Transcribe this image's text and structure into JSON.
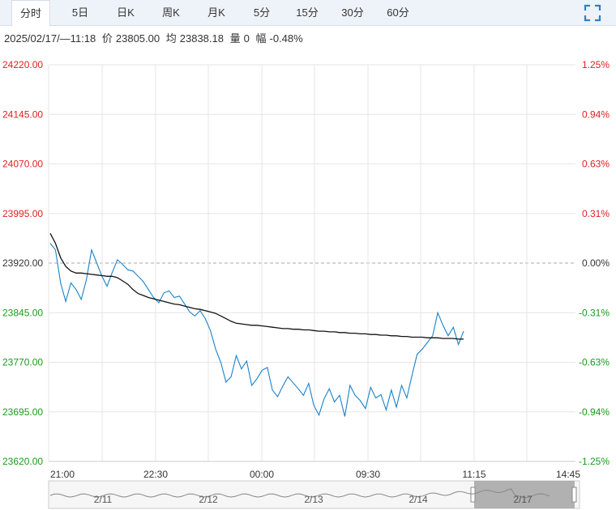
{
  "tabs": [
    {
      "label": "分时",
      "active": true
    },
    {
      "label": "5日"
    },
    {
      "label": "日K"
    },
    {
      "label": "周K"
    },
    {
      "label": "月K"
    },
    {
      "label": "5分"
    },
    {
      "label": "15分"
    },
    {
      "label": "30分"
    },
    {
      "label": "60分"
    }
  ],
  "fullscreen_icon": "expand-icon",
  "info": {
    "datetime": "2025/02/17/—11:18",
    "price_label": "价",
    "price": "23805.00",
    "avg_label": "均",
    "avg": "23838.18",
    "vol_label": "量",
    "vol": "0",
    "change_label": "幅",
    "change": "-0.48%"
  },
  "colors": {
    "up": "#e02020",
    "down": "#1a9a1a",
    "price_line": "#1a82c8",
    "avg_line": "#111111",
    "grid": "#e6e6e6",
    "ref_line": "#aaaaaa"
  },
  "chart_data": {
    "type": "line",
    "y_ticks": [
      "24220.00",
      "24145.00",
      "24070.00",
      "23995.00",
      "23920.00",
      "23845.00",
      "23770.00",
      "23695.00",
      "23620.00"
    ],
    "pct_ticks": [
      "1.25%",
      "0.94%",
      "0.63%",
      "0.31%",
      "0.00%",
      "-0.31%",
      "-0.63%",
      "-0.94%",
      "-1.25%"
    ],
    "x_ticks": [
      "21:00",
      "22:30",
      "00:00",
      "09:30",
      "11:15",
      "14:45"
    ],
    "ylim": [
      23620,
      24220
    ],
    "reference_price": 23920,
    "series": [
      {
        "values": [
          23950,
          23940,
          23890,
          23862,
          23890,
          23880,
          23865,
          23895,
          23940,
          23920,
          23900,
          23885,
          23906,
          23925,
          23918,
          23910,
          23908,
          23900,
          23892,
          23880,
          23868,
          23860,
          23875,
          23878,
          23868,
          23870,
          23858,
          23846,
          23840,
          23848,
          23836,
          23818,
          23790,
          23770,
          23740,
          23748,
          23780,
          23760,
          23772,
          23735,
          23745,
          23758,
          23762,
          23728,
          23718,
          23734,
          23748,
          23739,
          23730,
          23720,
          23738,
          23705,
          23690,
          23715,
          23730,
          23710,
          23720,
          23688,
          23735,
          23720,
          23712,
          23700,
          23732,
          23716,
          23721,
          23698,
          23728,
          23702,
          23735,
          23716,
          23750,
          23782,
          23790,
          23800,
          23810,
          23845,
          23826,
          23810,
          23823,
          23797,
          23817
        ]
      },
      {
        "values": [
          23965,
          23950,
          23928,
          23915,
          23908,
          23905,
          23905,
          23904,
          23903,
          23902,
          23901,
          23900,
          23900,
          23898,
          23893,
          23888,
          23880,
          23874,
          23871,
          23868,
          23866,
          23864,
          23862,
          23860,
          23858,
          23857,
          23855,
          23853,
          23851,
          23850,
          23848,
          23846,
          23844,
          23840,
          23836,
          23832,
          23829,
          23828,
          23827,
          23826,
          23826,
          23825,
          23824,
          23823,
          23822,
          23821,
          23821,
          23820,
          23820,
          23819,
          23819,
          23818,
          23817,
          23817,
          23816,
          23816,
          23815,
          23815,
          23814,
          23814,
          23813,
          23813,
          23812,
          23812,
          23811,
          23811,
          23810,
          23810,
          23809,
          23809,
          23808,
          23808,
          23808,
          23807,
          23807,
          23807,
          23806,
          23806,
          23806,
          23805,
          23805
        ]
      }
    ],
    "navigator_labels": [
      "2/11",
      "2/12",
      "2/13",
      "2/14",
      "2/17"
    ],
    "grid": true
  }
}
